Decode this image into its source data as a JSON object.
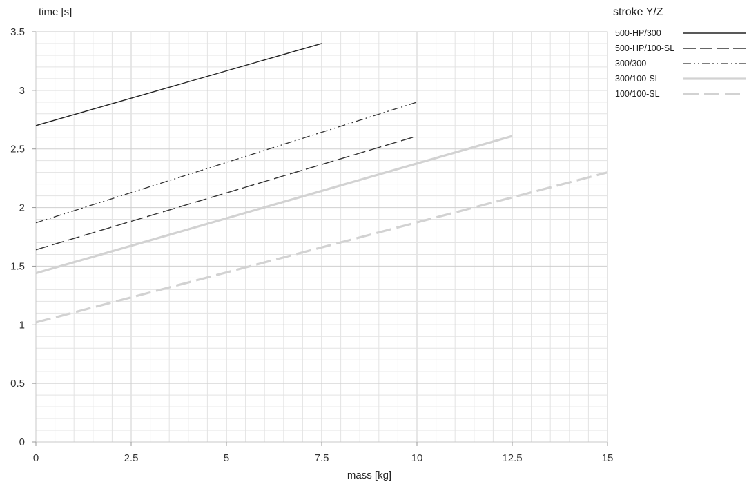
{
  "chart_data": {
    "type": "line",
    "xlabel": "mass [kg]",
    "ylabel": "time [s]",
    "xlim": [
      0,
      15
    ],
    "ylim": [
      0,
      3.5
    ],
    "xticks": [
      0,
      2.5,
      5,
      7.5,
      10,
      12.5,
      15
    ],
    "xtick_labels": [
      "0",
      "2.5",
      "5",
      "7.5",
      "10",
      "12.5",
      "15"
    ],
    "yticks": [
      0,
      0.5,
      1,
      1.5,
      2,
      2.5,
      3,
      3.5
    ],
    "ytick_labels": [
      "0",
      "0.5",
      "1",
      "1.5",
      "2",
      "2.5",
      "3",
      "3.5"
    ],
    "grid": true,
    "legend": {
      "title": "stroke Y/Z",
      "position": "top-right, outside plot"
    },
    "series": [
      {
        "name": "500-HP/300",
        "x": [
          0,
          7.5
        ],
        "y": [
          2.7,
          3.4
        ],
        "color": "#222222",
        "style": "solid"
      },
      {
        "name": "500-HP/100-SL",
        "x": [
          0,
          10
        ],
        "y": [
          1.64,
          2.61
        ],
        "color": "#333333",
        "style": "dash"
      },
      {
        "name": "300/300",
        "x": [
          0,
          10
        ],
        "y": [
          1.87,
          2.9
        ],
        "color": "#333333",
        "style": "dashdotdot"
      },
      {
        "name": "300/100-SL",
        "x": [
          0,
          12.5
        ],
        "y": [
          1.44,
          2.61
        ],
        "color": "#d2d2d2",
        "style": "solid-thick"
      },
      {
        "name": "100/100-SL",
        "x": [
          0,
          15
        ],
        "y": [
          1.02,
          2.3
        ],
        "color": "#d2d2d2",
        "style": "dash-thick"
      }
    ]
  }
}
